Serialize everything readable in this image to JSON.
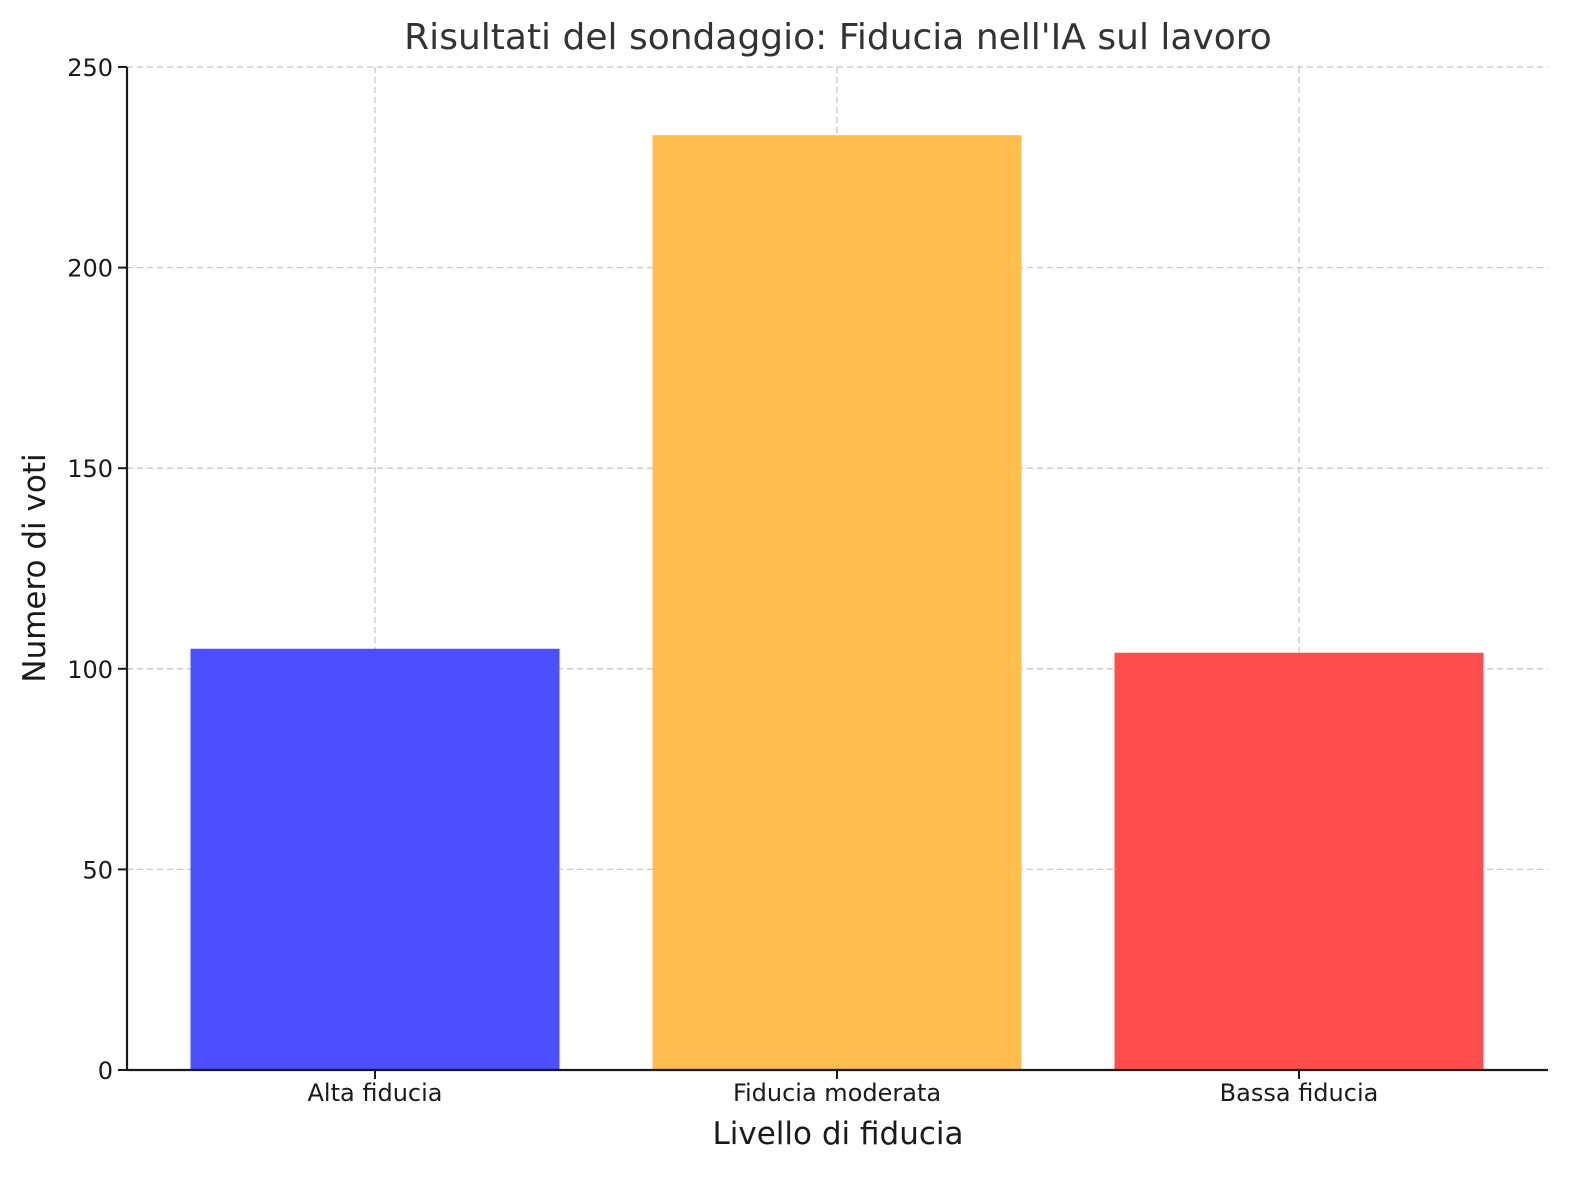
{
  "chart_data": {
    "type": "bar",
    "title": "Risultati del sondaggio: Fiducia nell'IA sul lavoro",
    "xlabel": "Livello di fiducia",
    "ylabel": "Numero di voti",
    "categories": [
      "Alta fiducia",
      "Fiducia moderata",
      "Bassa fiducia"
    ],
    "values": [
      105,
      233,
      104
    ],
    "colors": [
      "#4b4fff",
      "#fdbe4f",
      "#ff4d4d"
    ],
    "ylim": [
      0,
      250
    ],
    "yticks": [
      0,
      50,
      100,
      150,
      200,
      250
    ],
    "grid": true
  }
}
